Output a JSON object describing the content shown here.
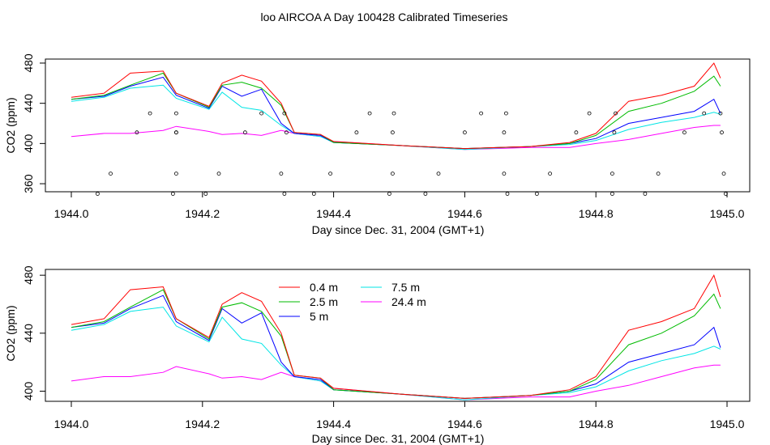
{
  "title": "loo AIRCOA A  Day 100428  Calibrated Timeseries",
  "chart_data": [
    {
      "type": "line",
      "xlabel": "Day since Dec. 31, 2004 (GMT+1)",
      "ylabel": "CO2 (ppm)",
      "xlim": [
        1944.0,
        1945.0
      ],
      "ylim": [
        352,
        484
      ],
      "xticks": [
        1944.0,
        1944.2,
        1944.4,
        1944.6,
        1944.8,
        1945.0
      ],
      "xtick_labels": [
        "1944.0",
        "1944.2",
        "1944.4",
        "1944.6",
        "1944.8",
        "1945.0"
      ],
      "yticks": [
        360,
        400,
        440,
        480
      ],
      "ytick_labels": [
        "360",
        "400",
        "440",
        "480"
      ],
      "x": [
        1944.0,
        1944.05,
        1944.09,
        1944.14,
        1944.16,
        1944.21,
        1944.23,
        1944.26,
        1944.29,
        1944.32,
        1944.34,
        1944.38,
        1944.4,
        1944.5,
        1944.6,
        1944.7,
        1944.76,
        1944.8,
        1944.85,
        1944.9,
        1944.95,
        1944.98,
        1944.99
      ],
      "series": [
        {
          "color": "#ff0000",
          "values": [
            446,
            450,
            470,
            472,
            450,
            437,
            460,
            468,
            462,
            440,
            411,
            409,
            402,
            398,
            395,
            397,
            401,
            410,
            442,
            448,
            457,
            480,
            465
          ]
        },
        {
          "color": "#00bb00",
          "values": [
            444,
            448,
            458,
            470,
            450,
            436,
            458,
            461,
            455,
            438,
            411,
            409,
            401,
            398,
            395,
            397,
            400,
            408,
            432,
            440,
            452,
            467,
            457
          ]
        },
        {
          "color": "#0000ff",
          "values": [
            444,
            447,
            457,
            466,
            448,
            435,
            457,
            447,
            454,
            420,
            410,
            408,
            401,
            398,
            395,
            397,
            400,
            405,
            420,
            426,
            432,
            444,
            430
          ]
        },
        {
          "color": "#00e5e5",
          "values": [
            442,
            446,
            455,
            458,
            445,
            434,
            451,
            436,
            433,
            418,
            410,
            407,
            401,
            398,
            394,
            397,
            399,
            403,
            414,
            421,
            426,
            431,
            429
          ]
        },
        {
          "color": "#ff00ff",
          "values": [
            407,
            410,
            410,
            413,
            417,
            412,
            409,
            410,
            408,
            413,
            410,
            407,
            402,
            398,
            394,
            396,
            396,
            400,
            404,
            410,
            416,
            418,
            418
          ]
        }
      ],
      "points": {
        "x": [
          1944.04,
          1944.06,
          1944.1,
          1944.12,
          1944.155,
          1944.16,
          1944.16,
          1944.16,
          1944.16,
          1944.205,
          1944.225,
          1944.265,
          1944.29,
          1944.32,
          1944.325,
          1944.325,
          1944.328,
          1944.37,
          1944.395,
          1944.435,
          1944.455,
          1944.485,
          1944.49,
          1944.49,
          1944.492,
          1944.54,
          1944.56,
          1944.6,
          1944.625,
          1944.66,
          1944.66,
          1944.663,
          1944.665,
          1944.71,
          1944.73,
          1944.77,
          1944.79,
          1944.825,
          1944.825,
          1944.828,
          1944.83,
          1944.875,
          1944.895,
          1944.935,
          1944.965,
          1944.99,
          1944.992,
          1944.995,
          1944.998
        ],
        "y": [
          350,
          370,
          411,
          430,
          350,
          370,
          411,
          430,
          411,
          350,
          370,
          411,
          430,
          370,
          350,
          430,
          411,
          350,
          370,
          411,
          430,
          350,
          370,
          411,
          430,
          350,
          370,
          411,
          430,
          370,
          411,
          430,
          350,
          350,
          370,
          411,
          430,
          350,
          370,
          411,
          430,
          350,
          370,
          411,
          430,
          430,
          411,
          370,
          350
        ]
      }
    },
    {
      "type": "line",
      "xlabel": "Day since Dec. 31, 2004 (GMT+1)",
      "ylabel": "CO2 (ppm)",
      "xlim": [
        1944.0,
        1945.0
      ],
      "ylim": [
        393,
        484
      ],
      "xticks": [
        1944.0,
        1944.2,
        1944.4,
        1944.6,
        1944.8,
        1945.0
      ],
      "xtick_labels": [
        "1944.0",
        "1944.2",
        "1944.4",
        "1944.6",
        "1944.8",
        "1945.0"
      ],
      "yticks": [
        400,
        440,
        480
      ],
      "ytick_labels": [
        "400",
        "440",
        "480"
      ],
      "legend": "top-left",
      "x": [
        1944.0,
        1944.05,
        1944.09,
        1944.14,
        1944.16,
        1944.21,
        1944.23,
        1944.26,
        1944.29,
        1944.32,
        1944.34,
        1944.38,
        1944.4,
        1944.5,
        1944.6,
        1944.7,
        1944.76,
        1944.8,
        1944.85,
        1944.9,
        1944.95,
        1944.98,
        1944.99
      ],
      "series": [
        {
          "name": "0.4 m",
          "color": "#ff0000",
          "values": [
            446,
            450,
            470,
            472,
            450,
            437,
            460,
            468,
            462,
            440,
            411,
            409,
            402,
            398,
            395,
            397,
            401,
            410,
            442,
            448,
            457,
            480,
            465
          ]
        },
        {
          "name": "2.5 m",
          "color": "#00bb00",
          "values": [
            444,
            448,
            458,
            470,
            450,
            436,
            458,
            461,
            455,
            438,
            411,
            409,
            401,
            398,
            395,
            397,
            400,
            408,
            432,
            440,
            452,
            467,
            457
          ]
        },
        {
          "name": "5 m",
          "color": "#0000ff",
          "values": [
            444,
            447,
            457,
            466,
            448,
            435,
            457,
            447,
            454,
            420,
            410,
            408,
            401,
            398,
            395,
            397,
            400,
            405,
            420,
            426,
            432,
            444,
            430
          ]
        },
        {
          "name": "7.5 m",
          "color": "#00e5e5",
          "values": [
            442,
            446,
            455,
            458,
            445,
            434,
            451,
            436,
            433,
            418,
            410,
            407,
            401,
            398,
            394,
            397,
            399,
            403,
            414,
            421,
            426,
            431,
            429
          ]
        },
        {
          "name": "24.4 m",
          "color": "#ff00ff",
          "values": [
            407,
            410,
            410,
            413,
            417,
            412,
            409,
            410,
            408,
            413,
            410,
            407,
            402,
            398,
            394,
            396,
            396,
            400,
            404,
            410,
            416,
            418,
            418
          ]
        }
      ]
    }
  ]
}
